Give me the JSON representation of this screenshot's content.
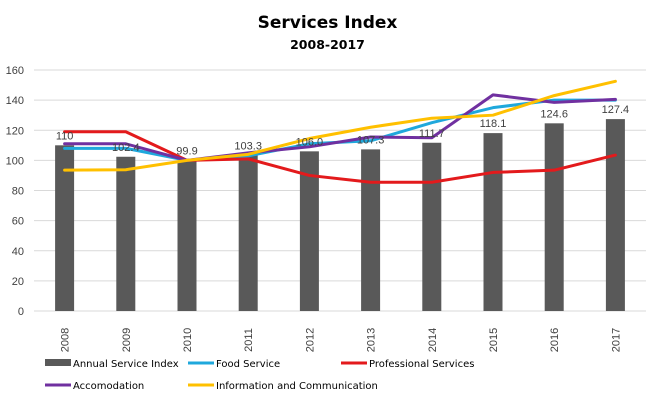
{
  "chart_data": {
    "type": "bar",
    "title": "Services Index",
    "subtitle": "2008-2017",
    "xlabel": "",
    "ylabel": "",
    "ylim": [
      0,
      160
    ],
    "yticks": [
      0,
      20,
      40,
      60,
      80,
      100,
      120,
      140,
      160
    ],
    "grid": true,
    "legend_position": "bottom",
    "categories": [
      "2008",
      "2009",
      "2010",
      "2011",
      "2012",
      "2013",
      "2014",
      "2015",
      "2016",
      "2017"
    ],
    "series": [
      {
        "name": "Annual Service Index",
        "kind": "bar",
        "color": "#595959",
        "values": [
          110,
          102.4,
          99.9,
          103.3,
          106.0,
          107.3,
          111.7,
          118.1,
          124.6,
          127.4
        ],
        "data_labels": [
          "110",
          "102.4",
          "99.9",
          "103.3",
          "106.0",
          "107.3",
          "111.7",
          "118.1",
          "124.6",
          "127.4"
        ]
      },
      {
        "name": "Food Service",
        "kind": "line",
        "color": "#1fa8dc",
        "values": [
          108,
          108,
          100,
          103,
          111,
          113,
          125,
          135,
          140,
          140
        ]
      },
      {
        "name": "Professional Services",
        "kind": "line",
        "color": "#e31a1c",
        "values": [
          119,
          119,
          100,
          101,
          90,
          85.5,
          85.5,
          92,
          93.5,
          103.5
        ]
      },
      {
        "name": "Accomodation",
        "kind": "line",
        "color": "#7030a0",
        "values": [
          111,
          111,
          100,
          105,
          109,
          115.5,
          115,
          143.5,
          138.5,
          140.5
        ]
      },
      {
        "name": "Information and Communication",
        "kind": "line",
        "color": "#ffc000",
        "values": [
          93.5,
          93.8,
          100,
          104,
          114.5,
          122,
          128,
          130,
          143,
          152.5
        ]
      }
    ]
  }
}
